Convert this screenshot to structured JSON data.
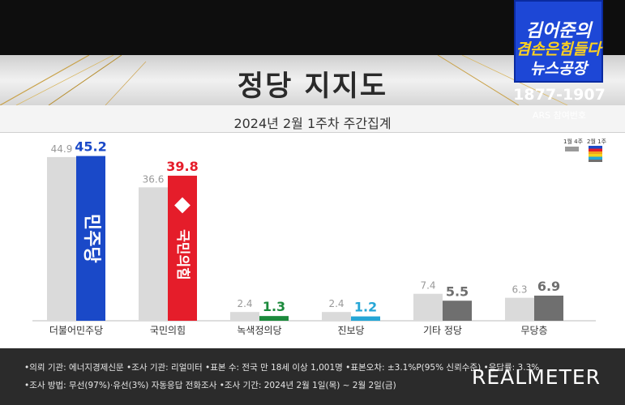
{
  "title": "정당 지지도",
  "subtitle": "2024년 2월 1주차 주간집계",
  "logo": {
    "line1": "김어준의",
    "line2": "겸손은힘들다",
    "line3": "뉴스공장",
    "phone": "1877-1907",
    "ars": "ARS 참여번호"
  },
  "brand": "REALMETER",
  "legend": {
    "prev": "1월 4주",
    "curr": "2월 1주"
  },
  "footnotes": [
    "•의뢰 기관: 에너지경제신문  •조사 기관: 리얼미터 •표본 수: 전국 만 18세 이상 1,001명 •표본오차: ±3.1%P(95% 신뢰수준) •응답률: 3.3%",
    "•조사 방법: 무선(97%)·유선(3%) 자동응답 전화조사 •조사 기간: 2024년 2월 1일(목) ~ 2월 2일(금)"
  ],
  "chart_data": {
    "type": "bar",
    "categories": [
      "더불어민주당",
      "국민의힘",
      "녹색정의당",
      "진보당",
      "기타 정당",
      "무당층"
    ],
    "series": [
      {
        "name": "1월 4주",
        "values": [
          44.9,
          36.6,
          2.4,
          2.4,
          7.4,
          6.3
        ]
      },
      {
        "name": "2월 1주",
        "values": [
          45.2,
          39.8,
          1.3,
          1.2,
          5.5,
          6.9
        ]
      }
    ],
    "colors": {
      "prev": "#dadada",
      "curr": [
        "#1a49c8",
        "#e51d2a",
        "#1c8a3c",
        "#25a6d6",
        "#6f6f6f",
        "#6f6f6f"
      ]
    },
    "party_marks": [
      "민주당",
      "국민의힘"
    ],
    "ylim": [
      0,
      50
    ]
  }
}
